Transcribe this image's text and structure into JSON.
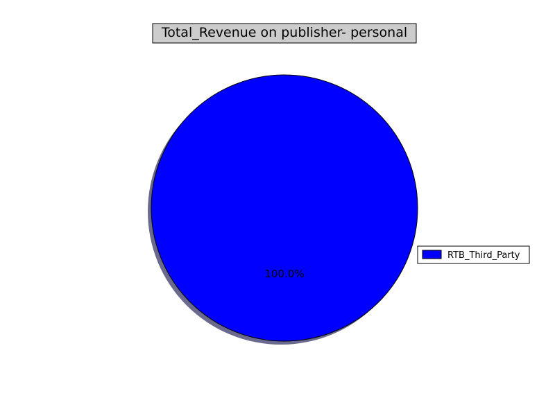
{
  "chart_data": {
    "type": "pie",
    "title": "Total_Revenue on publisher- personal",
    "slices": [
      {
        "label": "RTB_Third_Party",
        "value": 100.0,
        "percent_label": "100.0%",
        "color": "#0000ff"
      }
    ],
    "legend": {
      "placement": "right",
      "entries": [
        "RTB_Third_Party"
      ]
    },
    "shadow": true,
    "colors": {
      "title_box_fill": "#cccccc",
      "shadow": "#6a6a8e",
      "edge": "#000000"
    }
  }
}
